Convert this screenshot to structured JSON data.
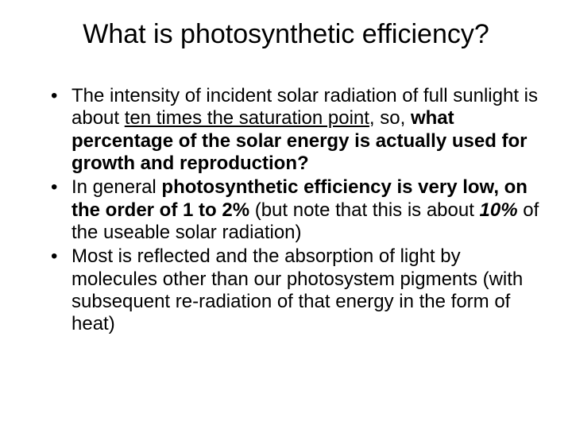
{
  "slide": {
    "background_color": "#ffffff",
    "text_color": "#000000",
    "font_family": "Arial",
    "title": {
      "text": "What is photosynthetic efficiency?",
      "fontsize": 34,
      "weight": "normal",
      "align": "center"
    },
    "bullets": [
      {
        "segments": [
          {
            "text": "The intensity of incident solar radiation of full sunlight is about "
          },
          {
            "text": "ten times the saturation point",
            "style": "underline"
          },
          {
            "text": ", so, "
          },
          {
            "text": "what percentage of the solar energy is actually used for growth and reproduction?",
            "style": "bold"
          }
        ]
      },
      {
        "segments": [
          {
            "text": "In general "
          },
          {
            "text": "photosynthetic efficiency is very low, on the order of 1 to 2%",
            "style": "bold"
          },
          {
            "text": " (but note that this is about "
          },
          {
            "text": "10%",
            "style": "bold-italic"
          },
          {
            "text": " of the useable solar radiation)"
          }
        ]
      },
      {
        "segments": [
          {
            "text": "Most is reflected and the absorption of light by molecules other than our photosystem pigments (with subsequent re-radiation of that energy in the form of heat)"
          }
        ]
      }
    ],
    "body_fontsize": 24,
    "bullet_marker": "•"
  }
}
